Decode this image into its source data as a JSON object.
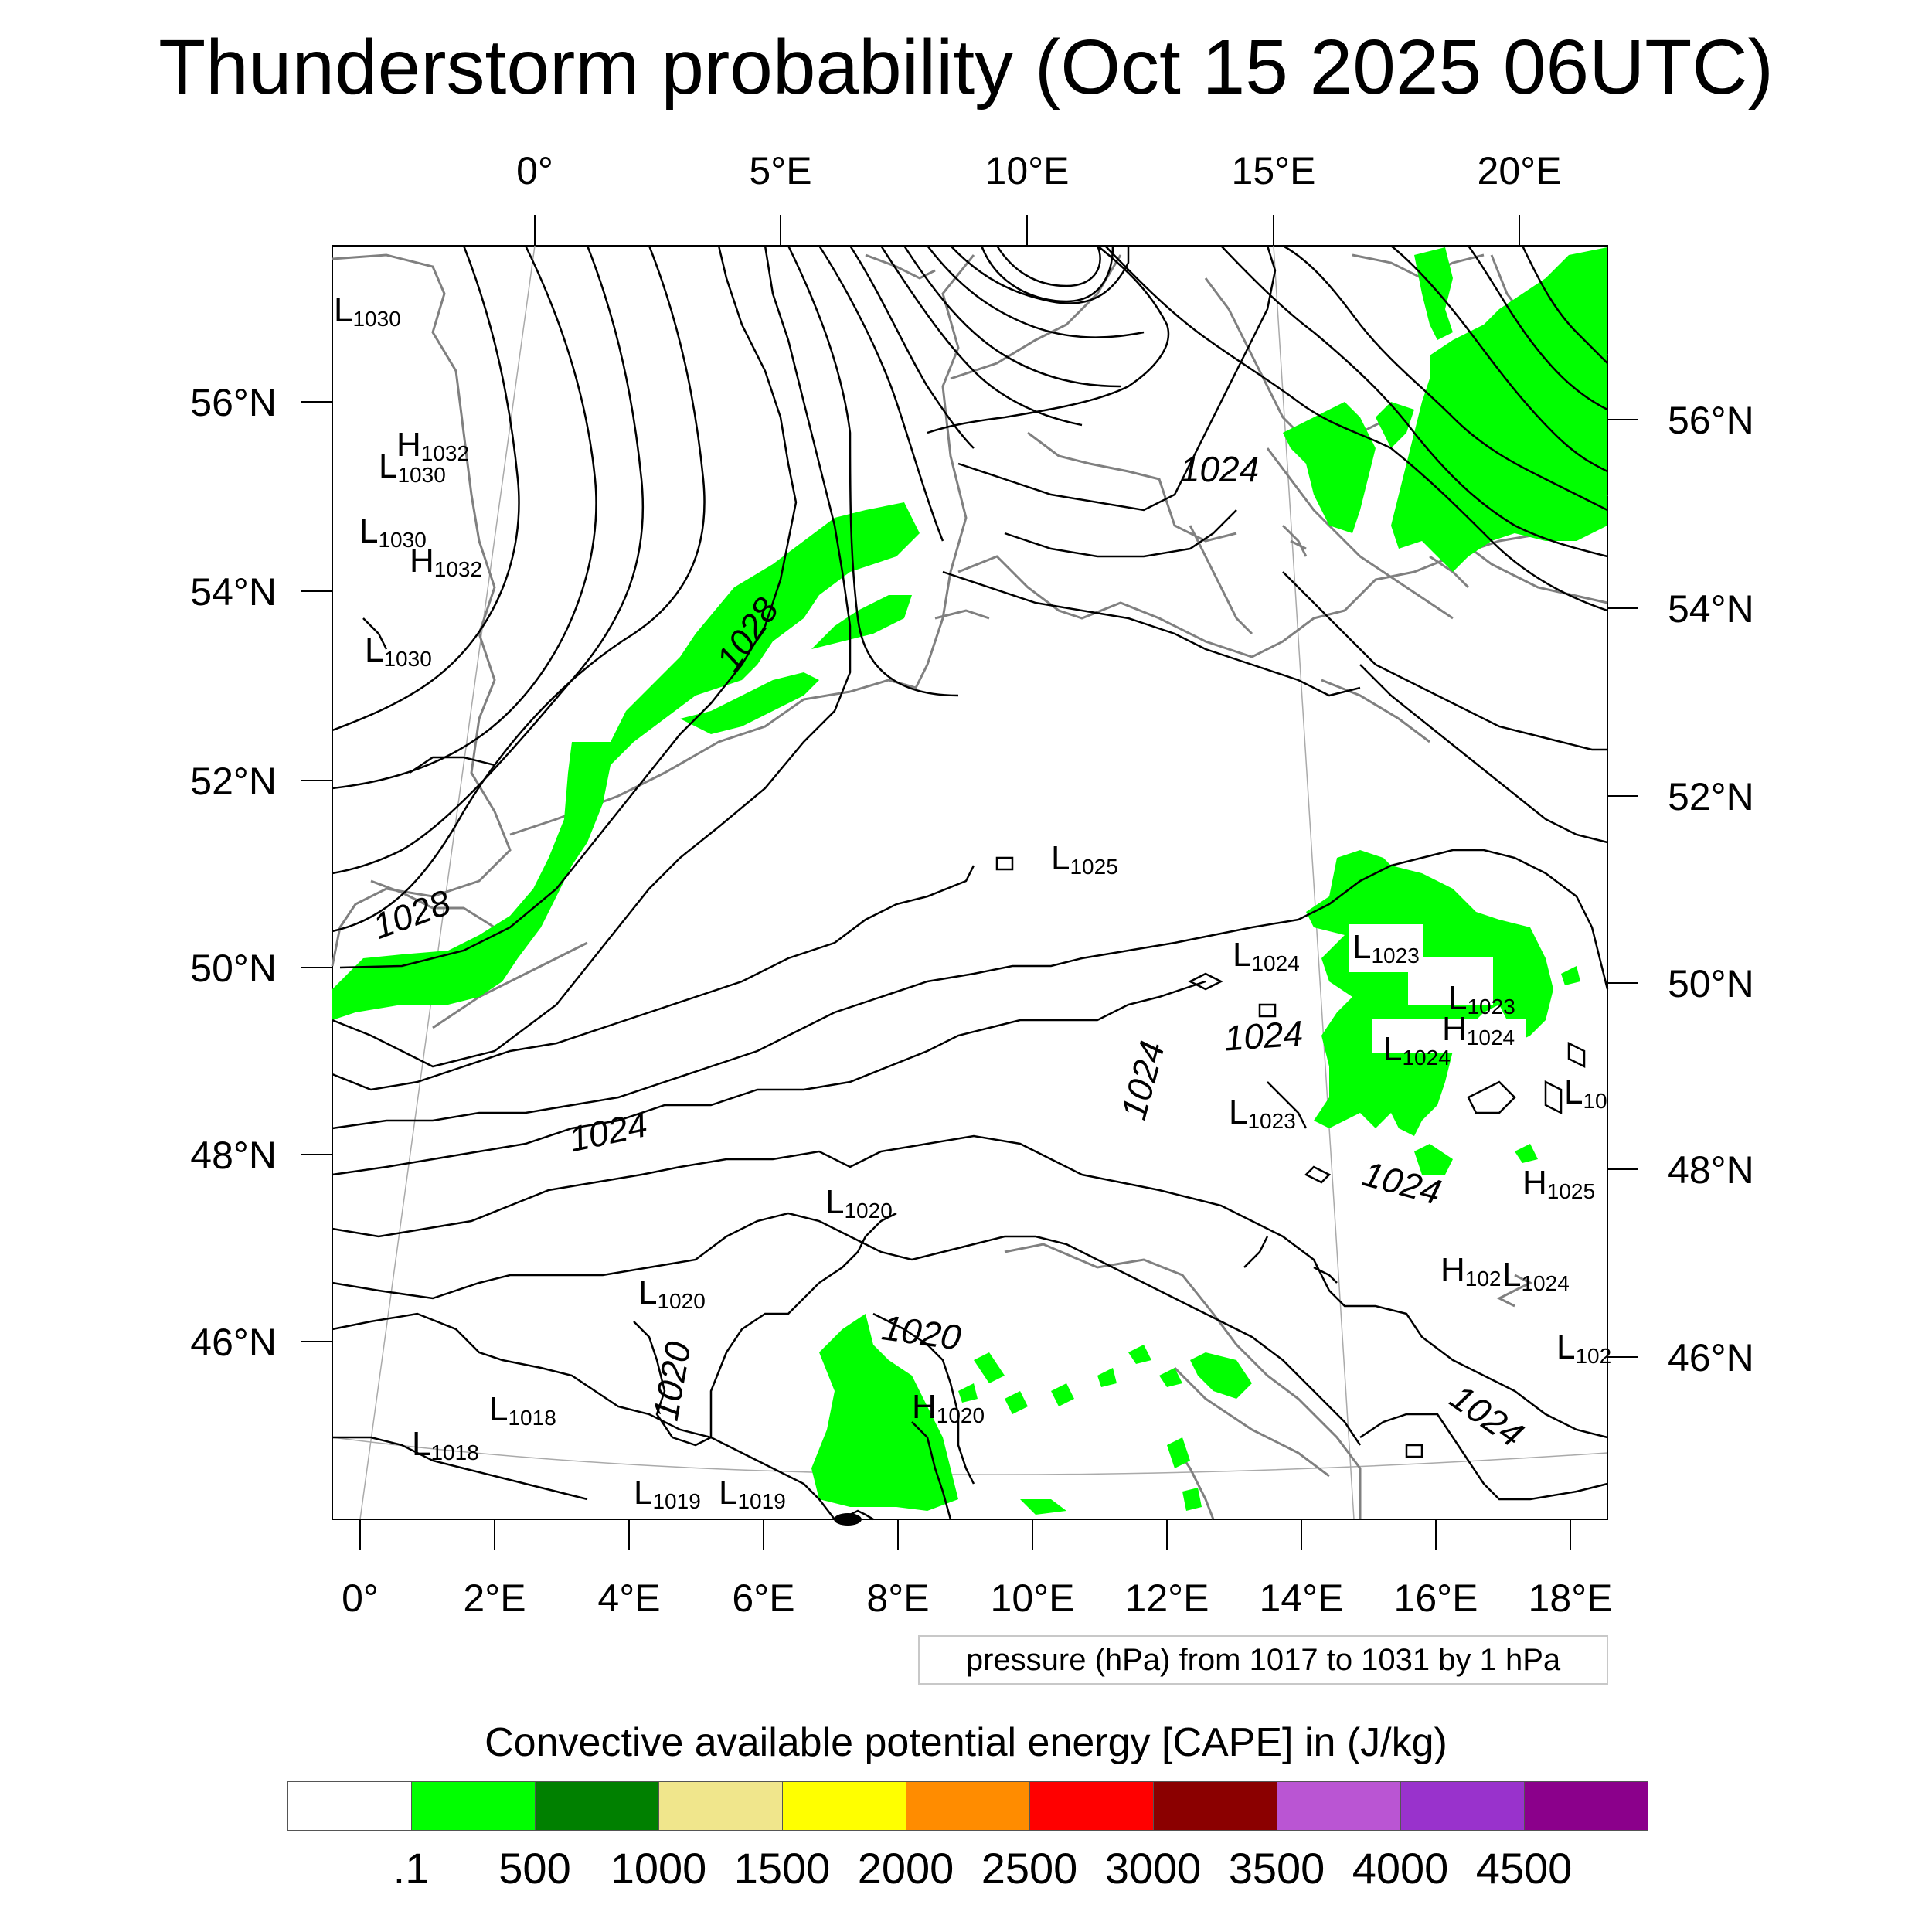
{
  "title": "Thunderstorm probability (Oct 15 2025 06UTC)",
  "top_lon_labels": [
    "0°",
    "5°E",
    "10°E",
    "15°E",
    "20°E"
  ],
  "bottom_lon_labels": [
    "0°",
    "2°E",
    "4°E",
    "6°E",
    "8°E",
    "10°E",
    "12°E",
    "14°E",
    "16°E",
    "18°E"
  ],
  "left_lat_labels": [
    "56°N",
    "54°N",
    "52°N",
    "50°N",
    "48°N",
    "46°N"
  ],
  "right_lat_labels": [
    "56°N",
    "54°N",
    "52°N",
    "50°N",
    "48°N",
    "46°N"
  ],
  "contour_labels": [
    "1028",
    "1028",
    "1024",
    "1024",
    "1024",
    "1024",
    "1024",
    "1024",
    "1020",
    "1020"
  ],
  "pressure_centers": [
    {
      "type": "L",
      "value": "1030"
    },
    {
      "type": "H",
      "value": "1032"
    },
    {
      "type": "L",
      "value": "1030"
    },
    {
      "type": "L",
      "value": "1030"
    },
    {
      "type": "H",
      "value": "1032"
    },
    {
      "type": "L",
      "value": "1030"
    },
    {
      "type": "L",
      "value": "1025"
    },
    {
      "type": "L",
      "value": "1024"
    },
    {
      "type": "L",
      "value": "1023"
    },
    {
      "type": "L",
      "value": "1023"
    },
    {
      "type": "H",
      "value": "1024"
    },
    {
      "type": "L",
      "value": "1024"
    },
    {
      "type": "L",
      "value": "10"
    },
    {
      "type": "L",
      "value": "1023"
    },
    {
      "type": "H",
      "value": "1025"
    },
    {
      "type": "L",
      "value": "1020"
    },
    {
      "type": "L",
      "value": "1020"
    },
    {
      "type": "H",
      "value": "102"
    },
    {
      "type": "L",
      "value": "1024"
    },
    {
      "type": "L",
      "value": "102"
    },
    {
      "type": "H",
      "value": "1020"
    },
    {
      "type": "L",
      "value": "1018"
    },
    {
      "type": "L",
      "value": "1018"
    },
    {
      "type": "L",
      "value": "1019"
    },
    {
      "type": "L",
      "value": "1019"
    }
  ],
  "info_text": "pressure (hPa) from 1017 to 1031 by 1 hPa",
  "colorbar": {
    "title": "Convective available potential energy [CAPE] in (J/kg)",
    "colors": [
      "#ffffff",
      "#00ff00",
      "#008000",
      "#f0e68c",
      "#ffff00",
      "#ff8c00",
      "#ff0000",
      "#8b0000",
      "#ba55d3",
      "#9932cc",
      "#8b008b"
    ],
    "tick_labels": [
      ".1",
      "500",
      "1000",
      "1500",
      "2000",
      "2500",
      "3000",
      "3500",
      "4000",
      "4500"
    ]
  },
  "colors": {
    "cape_shading": "#00ff00",
    "isobar": "#000000",
    "coastline": "#808080"
  }
}
